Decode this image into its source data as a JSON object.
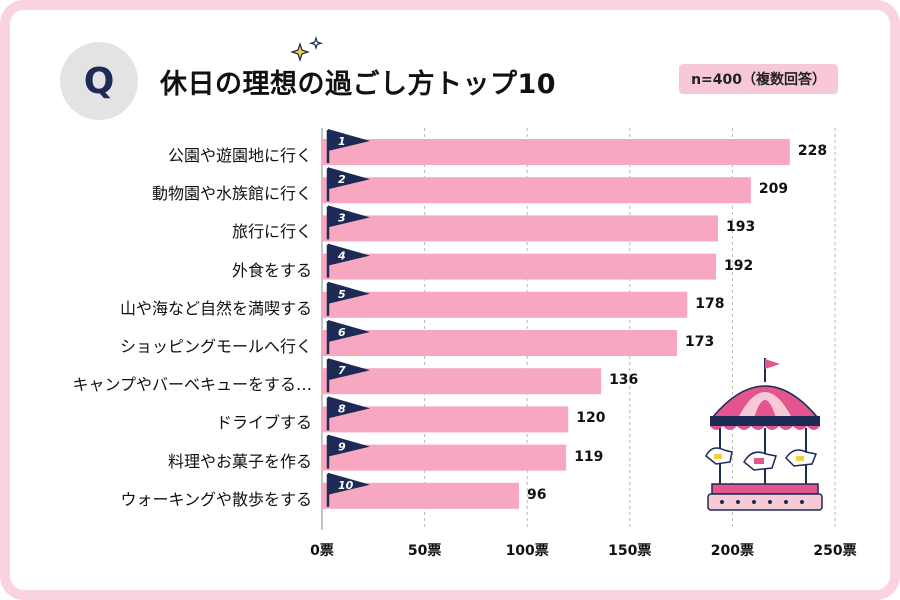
{
  "header": {
    "q_letter": "Q",
    "title": "休日の理想の過ごし方トップ10",
    "sample": "n=400（複数回答）"
  },
  "colors": {
    "bar": "#f7a7c0",
    "flag": "#1d2a55",
    "frame": "#f9d3de",
    "grid": "#b8b8b8"
  },
  "chart_data": {
    "type": "bar",
    "orientation": "horizontal",
    "title": "休日の理想の過ごし方トップ10",
    "xlabel": "",
    "ylabel": "",
    "xlim": [
      0,
      250
    ],
    "xticks": [
      0,
      50,
      100,
      150,
      200,
      250
    ],
    "tick_labels": [
      "0票",
      "50票",
      "100票",
      "150票",
      "200票",
      "250票"
    ],
    "categories": [
      "公園や遊園地に行く",
      "動物園や水族館に行く",
      "旅行に行く",
      "外食をする",
      "山や海など自然を満喫する",
      "ショッピングモールへ行く",
      "キャンプやバーベキューをする…",
      "ドライブする",
      "料理やお菓子を作る",
      "ウォーキングや散歩をする"
    ],
    "ranks": [
      "1",
      "2",
      "3",
      "4",
      "5",
      "6",
      "7",
      "8",
      "9",
      "10"
    ],
    "values": [
      228,
      209,
      193,
      192,
      178,
      173,
      136,
      120,
      119,
      96
    ],
    "grid": true
  }
}
